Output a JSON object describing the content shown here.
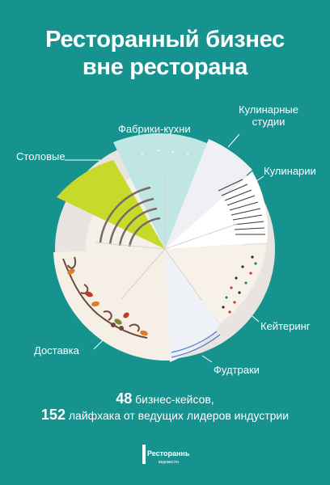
{
  "title": {
    "line1": "Ресторанный бизнес",
    "line2": "вне ресторана"
  },
  "segments": [
    {
      "id": "stolovye",
      "label": "Столовые",
      "color": "#c7d92a"
    },
    {
      "id": "fabriki",
      "label": "Фабрики-кухни",
      "color": "#bfe6e3"
    },
    {
      "id": "kulinarnye_studii",
      "label_line1": "Кулинарные",
      "label_line2": "студии",
      "color": "#eef0f3"
    },
    {
      "id": "kulinarii",
      "label": "Кулинарии",
      "color": "#3a3a3a"
    },
    {
      "id": "keitering",
      "label": "Кейтеринг",
      "color": "#f7f1ea"
    },
    {
      "id": "fudtraki",
      "label": "Фудтраки",
      "color": "#eef1f6"
    },
    {
      "id": "dostavka",
      "label": "Доставка",
      "color": "#f6efe6"
    }
  ],
  "footer": {
    "line1_num": "48",
    "line1_text": " бизнес-кейсов,",
    "line2_num": "152",
    "line2_text": " лайфхака от ведущих лидеров индустрии"
  },
  "logo": {
    "main": "Ресторанные",
    "sub": "ведомости"
  },
  "colors": {
    "background": "#16928f",
    "plate_rim": "#e9e4df",
    "plate_inner": "#f4f0ea"
  }
}
